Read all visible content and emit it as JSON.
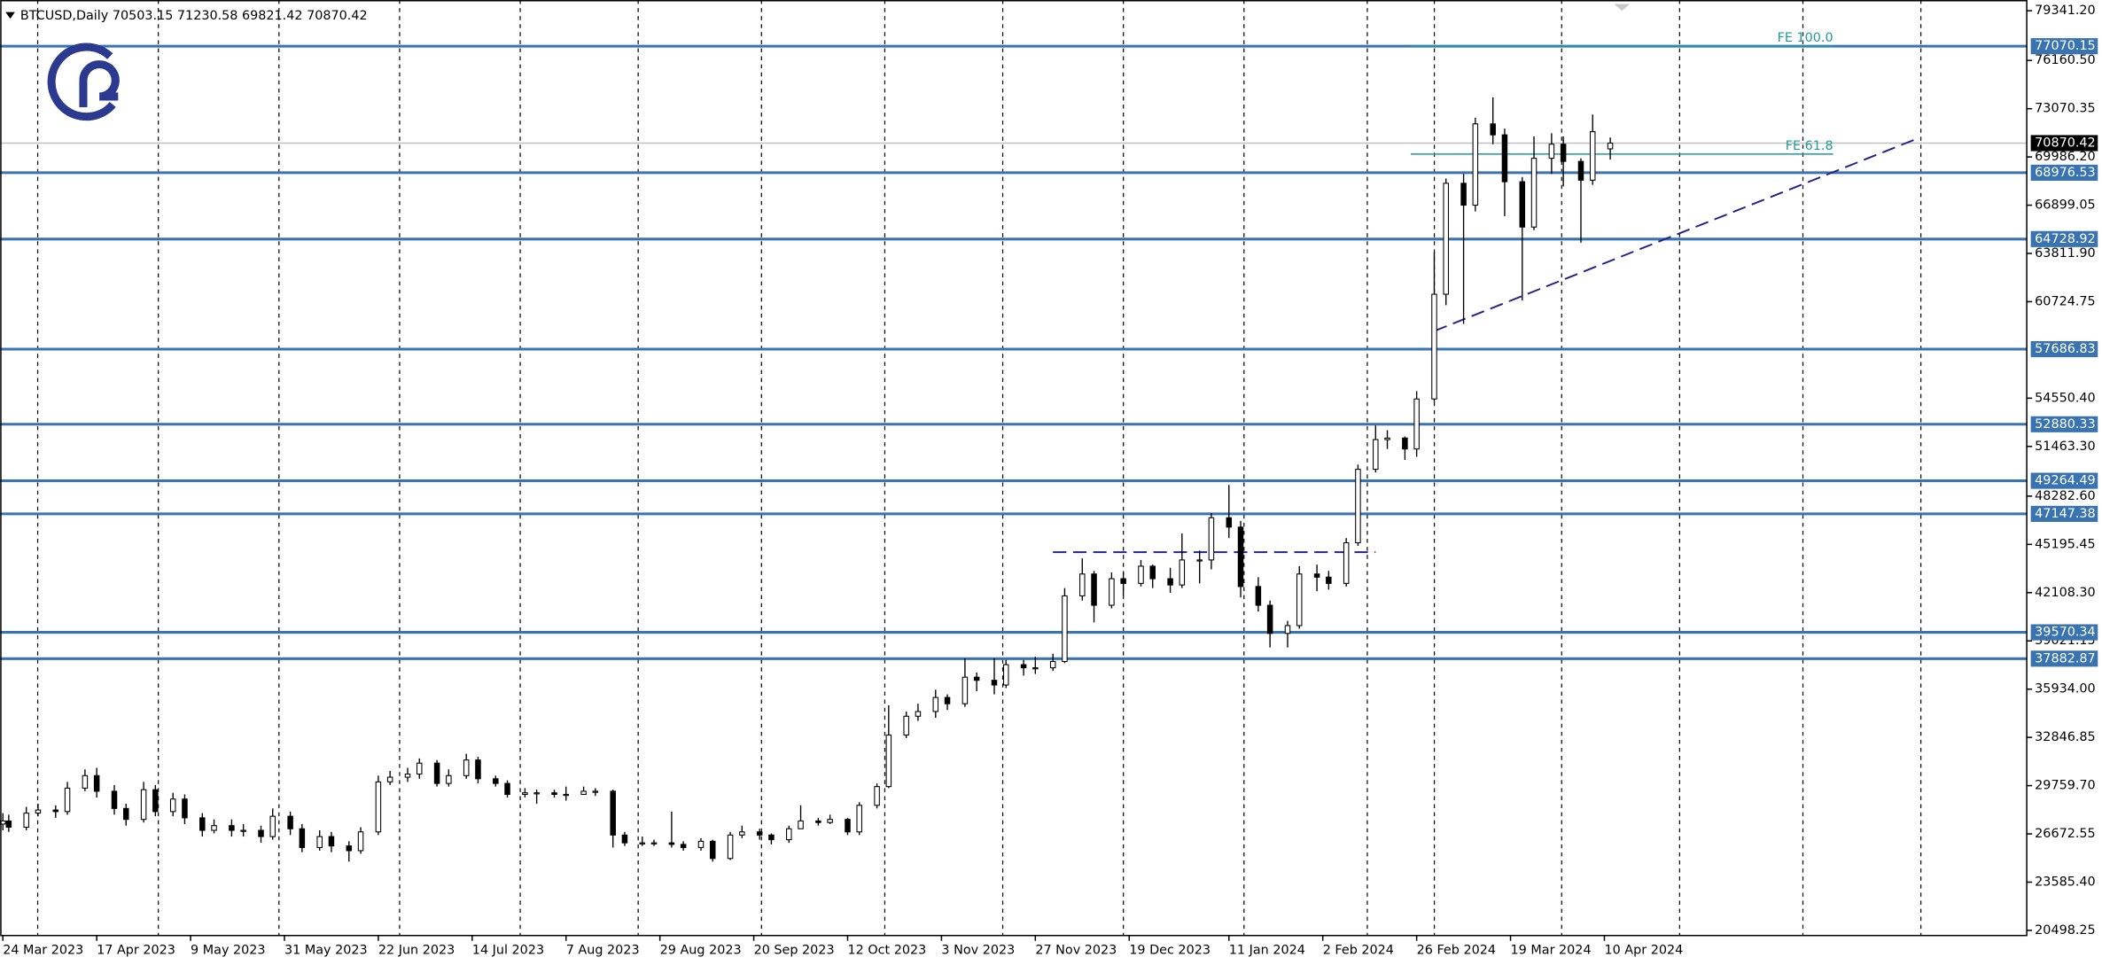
{
  "chart_data": {
    "type": "candlestick",
    "title": "BTCUSD,Daily  70503.15 71230.58 69821.42 70870.42",
    "x": [
      "24 Mar 2023",
      "27 Mar 2023",
      "30 Mar 2023",
      "3 Apr 2023",
      "6 Apr 2023",
      "10 Apr 2023",
      "13 Apr 2023",
      "17 Apr 2023",
      "20 Apr 2023",
      "24 Apr 2023",
      "27 Apr 2023",
      "1 May 2023",
      "4 May 2023",
      "8 May 2023",
      "11 May 2023",
      "15 May 2023",
      "18 May 2023",
      "22 May 2023",
      "25 May 2023",
      "29 May 2023",
      "1 Jun 2023",
      "5 Jun 2023",
      "8 Jun 2023",
      "12 Jun 2023",
      "15 Jun 2023",
      "19 Jun 2023",
      "22 Jun 2023",
      "26 Jun 2023",
      "29 Jun 2023",
      "3 Jul 2023",
      "6 Jul 2023",
      "10 Jul 2023",
      "13 Jul 2023",
      "17 Jul 2023",
      "20 Jul 2023",
      "24 Jul 2023",
      "27 Jul 2023",
      "31 Jul 2023",
      "3 Aug 2023",
      "7 Aug 2023",
      "10 Aug 2023",
      "14 Aug 2023",
      "17 Aug 2023",
      "21 Aug 2023",
      "24 Aug 2023",
      "28 Aug 2023",
      "31 Aug 2023",
      "4 Sep 2023",
      "7 Sep 2023",
      "11 Sep 2023",
      "14 Sep 2023",
      "18 Sep 2023",
      "21 Sep 2023",
      "25 Sep 2023",
      "28 Sep 2023",
      "2 Oct 2023",
      "5 Oct 2023",
      "9 Oct 2023",
      "12 Oct 2023",
      "16 Oct 2023",
      "19 Oct 2023",
      "23 Oct 2023",
      "26 Oct 2023",
      "30 Oct 2023",
      "2 Nov 2023",
      "6 Nov 2023",
      "9 Nov 2023",
      "13 Nov 2023",
      "16 Nov 2023",
      "20 Nov 2023",
      "23 Nov 2023",
      "27 Nov 2023",
      "30 Nov 2023",
      "4 Dec 2023",
      "7 Dec 2023",
      "11 Dec 2023",
      "14 Dec 2023",
      "18 Dec 2023",
      "21 Dec 2023",
      "25 Dec 2023",
      "28 Dec 2023",
      "1 Jan 2024",
      "4 Jan 2024",
      "8 Jan 2024",
      "11 Jan 2024",
      "15 Jan 2024",
      "18 Jan 2024",
      "22 Jan 2024",
      "25 Jan 2024",
      "29 Jan 2024",
      "1 Feb 2024",
      "5 Feb 2024",
      "8 Feb 2024",
      "12 Feb 2024",
      "15 Feb 2024",
      "19 Feb 2024",
      "22 Feb 2024",
      "26 Feb 2024",
      "29 Feb 2024",
      "4 Mar 2024",
      "7 Mar 2024",
      "11 Mar 2024",
      "14 Mar 2024",
      "18 Mar 2024",
      "21 Mar 2024",
      "25 Mar 2024",
      "28 Mar 2024",
      "1 Apr 2024",
      "4 Apr 2024",
      "8 Apr 2024",
      "11 Apr 2024"
    ],
    "open": [
      27300,
      27500,
      27100,
      28000,
      28200,
      28100,
      29600,
      30400,
      29400,
      28300,
      27600,
      29500,
      28100,
      28900,
      27700,
      26900,
      27200,
      26900,
      26900,
      26500,
      27800,
      27000,
      25800,
      26500,
      25900,
      25600,
      26800,
      30000,
      30300,
      30500,
      31200,
      29900,
      30400,
      31400,
      30200,
      29900,
      29200,
      29300,
      29300,
      29200,
      29200,
      29400,
      29400,
      26600,
      26100,
      26100,
      26100,
      26000,
      25800,
      26200,
      25100,
      26600,
      26800,
      26600,
      26300,
      27000,
      27500,
      27400,
      27600,
      26800,
      28500,
      29700,
      33000,
      34200,
      34500,
      35400,
      35000,
      36700,
      36500,
      36200,
      37500,
      37300,
      37300,
      37700,
      41900,
      43300,
      41300,
      43000,
      42700,
      43800,
      43000,
      42600,
      44200,
      44200,
      46900,
      46300,
      42500,
      41300,
      39500,
      40000,
      43300,
      43100,
      42700,
      45300,
      50000,
      51900,
      52000,
      51300,
      54500,
      61200,
      68300,
      66900,
      72100,
      71400,
      68400,
      65500,
      69900,
      70800,
      69700,
      68500,
      70503.15
    ],
    "high": [
      28000,
      27900,
      28400,
      28600,
      28500,
      30000,
      30800,
      30900,
      29800,
      28600,
      30000,
      29800,
      29300,
      29200,
      28000,
      27600,
      27600,
      27300,
      27200,
      28300,
      28100,
      27300,
      26900,
      26800,
      26200,
      27100,
      30400,
      30700,
      30900,
      31500,
      31400,
      30800,
      31800,
      31600,
      30400,
      30100,
      29600,
      29500,
      29500,
      29700,
      29700,
      29600,
      29500,
      26800,
      26500,
      26300,
      28100,
      26200,
      26400,
      26300,
      26800,
      27200,
      27000,
      26700,
      27200,
      28500,
      27700,
      27900,
      27700,
      28700,
      29900,
      34900,
      34500,
      35000,
      35900,
      35600,
      37900,
      37000,
      37900,
      37800,
      37800,
      38000,
      38200,
      42400,
      44300,
      43500,
      43400,
      43400,
      44200,
      43900,
      43700,
      45900,
      44800,
      47200,
      49000,
      46700,
      43100,
      41600,
      40300,
      43800,
      43900,
      43500,
      45600,
      50300,
      52800,
      52500,
      52100,
      55000,
      63900,
      68600,
      68900,
      72500,
      73800,
      71800,
      68700,
      71300,
      71500,
      71300,
      69900,
      72700,
      71230.58
    ],
    "low": [
      26900,
      26800,
      26900,
      27800,
      27700,
      27900,
      29400,
      29000,
      27900,
      27200,
      27400,
      27800,
      27800,
      27300,
      26500,
      26700,
      26500,
      26500,
      26100,
      26300,
      26600,
      25500,
      25600,
      25500,
      24900,
      25400,
      26600,
      29800,
      30000,
      30200,
      29700,
      29700,
      30200,
      29900,
      29700,
      29000,
      29000,
      28600,
      29000,
      28800,
      29200,
      29100,
      25800,
      25900,
      25900,
      25900,
      25800,
      25600,
      25600,
      24900,
      25000,
      26400,
      26300,
      26000,
      26100,
      27000,
      27200,
      27300,
      26600,
      26600,
      28300,
      29600,
      32800,
      33900,
      34100,
      34600,
      34800,
      35800,
      35600,
      36000,
      36800,
      36900,
      37100,
      37600,
      41600,
      40200,
      41100,
      41900,
      42500,
      42400,
      42100,
      42400,
      42700,
      43600,
      45600,
      41800,
      40900,
      38600,
      38600,
      39800,
      42200,
      42300,
      42500,
      45100,
      49800,
      51300,
      50600,
      50800,
      54300,
      60500,
      59300,
      66500,
      70800,
      66200,
      60800,
      65300,
      68900,
      68100,
      64500,
      68200,
      69821.42
    ],
    "close": [
      27500,
      27100,
      28000,
      28200,
      28100,
      29600,
      30400,
      29400,
      28300,
      27600,
      29500,
      28100,
      28900,
      27700,
      26900,
      27200,
      26900,
      26900,
      26500,
      27800,
      27000,
      25800,
      26500,
      25900,
      25600,
      26800,
      30000,
      30300,
      30500,
      31200,
      29900,
      30400,
      31400,
      30200,
      29900,
      29200,
      29300,
      29300,
      29200,
      29200,
      29400,
      29400,
      26600,
      26100,
      26100,
      26100,
      26000,
      25800,
      26200,
      25100,
      26600,
      26800,
      26600,
      26300,
      27000,
      27500,
      27400,
      27600,
      26800,
      28500,
      29700,
      33000,
      34200,
      34500,
      35400,
      35000,
      36700,
      36500,
      36200,
      37500,
      37300,
      37300,
      37700,
      41900,
      43300,
      41300,
      43000,
      42700,
      43800,
      43000,
      42600,
      44200,
      44200,
      46900,
      46300,
      42500,
      41300,
      39500,
      40000,
      43300,
      43100,
      42700,
      45300,
      50000,
      51900,
      52000,
      51300,
      54500,
      61200,
      68300,
      66900,
      72100,
      71400,
      68400,
      65500,
      69900,
      70800,
      69700,
      68500,
      71600,
      70870.42
    ],
    "up_color": "#ffffff",
    "down_color": "#000000",
    "xlim": [
      "24 Mar 2023",
      "19 Jul 2024"
    ],
    "xticks": [
      "24 Mar 2023",
      "17 Apr 2023",
      "9 May 2023",
      "31 May 2023",
      "22 Jun 2023",
      "14 Jul 2023",
      "7 Aug 2023",
      "29 Aug 2023",
      "20 Sep 2023",
      "12 Oct 2023",
      "3 Nov 2023",
      "27 Nov 2023",
      "19 Dec 2023",
      "11 Jan 2024",
      "2 Feb 2024",
      "26 Feb 2024",
      "19 Mar 2024",
      "10 Apr 2024"
    ],
    "ylim": [
      20170,
      80027
    ],
    "yticks": [
      {
        "value": 79341.2,
        "label": "79341.20"
      },
      {
        "value": 76160.5,
        "label": "76160.50"
      },
      73070.35,
      {
        "value": 69986.2,
        "label": "69986.20"
      },
      66899.05,
      {
        "value": 63811.9,
        "label": "63811.90"
      },
      60724.75,
      {
        "value": 54550.4,
        "label": "54550.40"
      },
      {
        "value": 51463.3,
        "label": "51463.30"
      },
      {
        "value": 48282.6,
        "label": "48282.60"
      },
      45195.45,
      {
        "value": 42108.3,
        "label": "42108.30"
      },
      39021.15,
      {
        "value": 35934.0,
        "label": "35934.00"
      },
      32846.85,
      {
        "value": 29759.7,
        "label": "29759.70"
      },
      26672.55,
      {
        "value": 23585.4,
        "label": "23585.40"
      },
      20498.25
    ],
    "levels": [
      77070.15,
      68976.53,
      64728.92,
      57686.83,
      52880.33,
      49264.49,
      47147.38,
      39570.34,
      37882.87
    ],
    "level_color": "#3a74b0",
    "last_price": 70870.42,
    "fibo": [
      {
        "text": "FE 100.0",
        "value": 77070.15,
        "x": [
          "23 Feb 2024",
          "4 Jun 2024"
        ]
      },
      {
        "text": "FE 61.8",
        "value": 70166,
        "x": [
          "23 Feb 2024",
          "4 Jun 2024"
        ]
      }
    ],
    "fibo_color": "#1f9a9a",
    "trendlines": [
      {
        "x": [
          "29 Feb 2024",
          "24 Jun 2024"
        ],
        "y": [
          58845,
          71109
        ]
      },
      {
        "x": [
          "30 Nov 2023",
          "15 Feb 2024"
        ],
        "y": [
          44696,
          44696
        ]
      }
    ],
    "trendline_color": "#23238e"
  }
}
